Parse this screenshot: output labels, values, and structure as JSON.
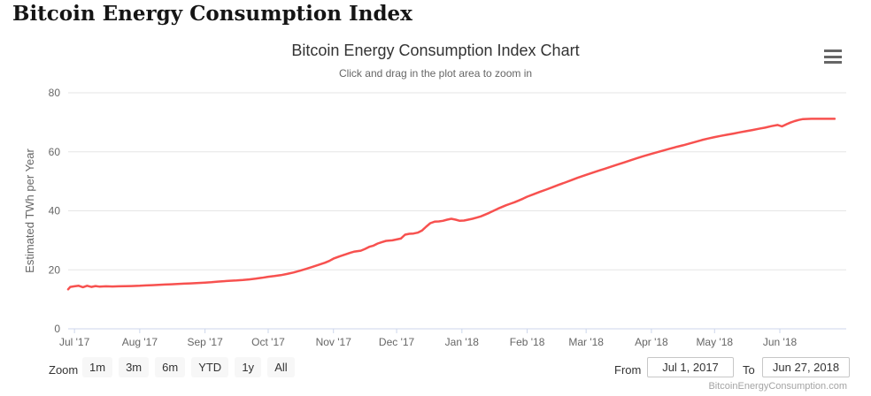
{
  "page": {
    "title": "Bitcoin Energy Consumption Index"
  },
  "chart": {
    "title": "Bitcoin Energy Consumption Index Chart",
    "subtitle": "Click and drag in the plot area to zoom in",
    "menu_icon": "hamburger-menu-icon",
    "attribution": "BitcoinEnergyConsumption.com"
  },
  "controls": {
    "zoom_label": "Zoom",
    "buttons": [
      "1m",
      "3m",
      "6m",
      "YTD",
      "1y",
      "All"
    ],
    "from_label": "From",
    "from_value": "Jul 1, 2017",
    "to_label": "To",
    "to_value": "Jun 27, 2018"
  },
  "colors": {
    "series_line": "#f7514f",
    "gridline": "#e6e6e6",
    "axis_line": "#ccd6eb",
    "tick_label": "#666666",
    "title_text": "#333333",
    "button_bg": "#f7f7f7"
  },
  "chart_data": {
    "type": "line",
    "title": "Bitcoin Energy Consumption Index Chart",
    "subtitle": "Click and drag in the plot area to zoom in",
    "xlabel": "",
    "ylabel": "Estimated TWh per Year",
    "x_unit": "days since Jul 1, 2017",
    "xlim_days": [
      -3,
      364
    ],
    "ylim": [
      0,
      80
    ],
    "yticks": [
      0,
      20,
      40,
      60,
      80
    ],
    "grid": "horizontal-only",
    "legend": "none",
    "xticks": [
      {
        "label": "Jul '17",
        "day": 0
      },
      {
        "label": "Aug '17",
        "day": 31
      },
      {
        "label": "Sep '17",
        "day": 62
      },
      {
        "label": "Oct '17",
        "day": 92
      },
      {
        "label": "Nov '17",
        "day": 123
      },
      {
        "label": "Dec '17",
        "day": 153
      },
      {
        "label": "Jan '18",
        "day": 184
      },
      {
        "label": "Feb '18",
        "day": 215
      },
      {
        "label": "Mar '18",
        "day": 243
      },
      {
        "label": "Apr '18",
        "day": 274
      },
      {
        "label": "May '18",
        "day": 304
      },
      {
        "label": "Jun '18",
        "day": 335
      }
    ],
    "series": [
      {
        "name": "Estimated TWh per Year",
        "color": "#f7514f",
        "points": [
          [
            -3,
            13.4
          ],
          [
            -2,
            14.2
          ],
          [
            0,
            14.4
          ],
          [
            2,
            14.6
          ],
          [
            4,
            14.1
          ],
          [
            6,
            14.6
          ],
          [
            8,
            14.2
          ],
          [
            10,
            14.5
          ],
          [
            12,
            14.3
          ],
          [
            15,
            14.4
          ],
          [
            18,
            14.35
          ],
          [
            21,
            14.4
          ],
          [
            24,
            14.45
          ],
          [
            27,
            14.5
          ],
          [
            31,
            14.6
          ],
          [
            34,
            14.7
          ],
          [
            37,
            14.8
          ],
          [
            40,
            14.9
          ],
          [
            43,
            15.0
          ],
          [
            46,
            15.1
          ],
          [
            49,
            15.2
          ],
          [
            52,
            15.3
          ],
          [
            55,
            15.4
          ],
          [
            58,
            15.5
          ],
          [
            62,
            15.65
          ],
          [
            65,
            15.8
          ],
          [
            68,
            16.0
          ],
          [
            71,
            16.15
          ],
          [
            74,
            16.3
          ],
          [
            77,
            16.4
          ],
          [
            80,
            16.55
          ],
          [
            83,
            16.75
          ],
          [
            86,
            17.0
          ],
          [
            89,
            17.3
          ],
          [
            92,
            17.65
          ],
          [
            95,
            17.9
          ],
          [
            98,
            18.2
          ],
          [
            101,
            18.6
          ],
          [
            104,
            19.1
          ],
          [
            107,
            19.7
          ],
          [
            110,
            20.3
          ],
          [
            113,
            21.0
          ],
          [
            116,
            21.7
          ],
          [
            119,
            22.4
          ],
          [
            121,
            23.0
          ],
          [
            123,
            23.8
          ],
          [
            126,
            24.6
          ],
          [
            129,
            25.3
          ],
          [
            131,
            25.8
          ],
          [
            133,
            26.2
          ],
          [
            136,
            26.5
          ],
          [
            138,
            27.1
          ],
          [
            140,
            27.8
          ],
          [
            142,
            28.2
          ],
          [
            144,
            28.9
          ],
          [
            146,
            29.4
          ],
          [
            148,
            29.8
          ],
          [
            151,
            30.0
          ],
          [
            153,
            30.3
          ],
          [
            155,
            30.6
          ],
          [
            157,
            31.9
          ],
          [
            159,
            32.2
          ],
          [
            161,
            32.3
          ],
          [
            163,
            32.6
          ],
          [
            165,
            33.3
          ],
          [
            167,
            34.6
          ],
          [
            169,
            35.8
          ],
          [
            171,
            36.3
          ],
          [
            173,
            36.4
          ],
          [
            175,
            36.6
          ],
          [
            177,
            37.0
          ],
          [
            179,
            37.3
          ],
          [
            181,
            37.0
          ],
          [
            183,
            36.6
          ],
          [
            185,
            36.7
          ],
          [
            187,
            37.0
          ],
          [
            189,
            37.3
          ],
          [
            191,
            37.7
          ],
          [
            193,
            38.1
          ],
          [
            195,
            38.7
          ],
          [
            197,
            39.3
          ],
          [
            199,
            40.0
          ],
          [
            201,
            40.7
          ],
          [
            203,
            41.3
          ],
          [
            205,
            41.9
          ],
          [
            207,
            42.4
          ],
          [
            209,
            42.9
          ],
          [
            211,
            43.5
          ],
          [
            213,
            44.1
          ],
          [
            215,
            44.8
          ],
          [
            218,
            45.6
          ],
          [
            221,
            46.4
          ],
          [
            224,
            47.2
          ],
          [
            227,
            48.0
          ],
          [
            230,
            48.8
          ],
          [
            233,
            49.6
          ],
          [
            236,
            50.4
          ],
          [
            239,
            51.2
          ],
          [
            243,
            52.2
          ],
          [
            246,
            52.9
          ],
          [
            249,
            53.6
          ],
          [
            252,
            54.3
          ],
          [
            255,
            55.0
          ],
          [
            258,
            55.7
          ],
          [
            261,
            56.4
          ],
          [
            264,
            57.1
          ],
          [
            267,
            57.8
          ],
          [
            270,
            58.5
          ],
          [
            274,
            59.3
          ],
          [
            277,
            59.9
          ],
          [
            280,
            60.5
          ],
          [
            283,
            61.1
          ],
          [
            286,
            61.7
          ],
          [
            289,
            62.2
          ],
          [
            292,
            62.8
          ],
          [
            295,
            63.4
          ],
          [
            298,
            64.0
          ],
          [
            301,
            64.5
          ],
          [
            304,
            65.0
          ],
          [
            307,
            65.4
          ],
          [
            310,
            65.8
          ],
          [
            313,
            66.2
          ],
          [
            316,
            66.6
          ],
          [
            319,
            67.0
          ],
          [
            322,
            67.4
          ],
          [
            325,
            67.8
          ],
          [
            328,
            68.2
          ],
          [
            331,
            68.7
          ],
          [
            334,
            69.1
          ],
          [
            336,
            68.6
          ],
          [
            338,
            69.3
          ],
          [
            340,
            69.9
          ],
          [
            342,
            70.4
          ],
          [
            344,
            70.8
          ],
          [
            346,
            71.1
          ],
          [
            350,
            71.2
          ],
          [
            354,
            71.2
          ],
          [
            358,
            71.2
          ],
          [
            361,
            71.2
          ]
        ]
      }
    ]
  }
}
